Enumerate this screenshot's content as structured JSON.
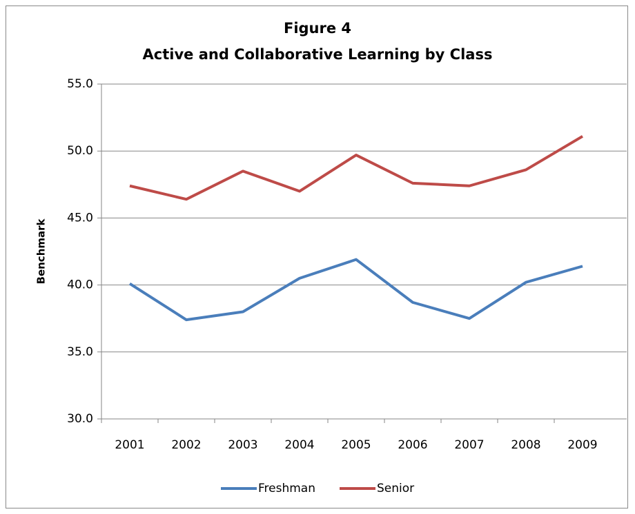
{
  "chart_data": {
    "type": "line",
    "title": "Figure 4",
    "subtitle": "Active and Collaborative Learning by Class",
    "y_label": "Benchmark",
    "categories": [
      "2001",
      "2002",
      "2003",
      "2004",
      "2005",
      "2006",
      "2007",
      "2008",
      "2009"
    ],
    "series": [
      {
        "name": "Freshman",
        "color": "#4a7ebb",
        "values": [
          40.1,
          37.4,
          38.0,
          40.5,
          41.9,
          38.7,
          37.5,
          40.2,
          41.4
        ]
      },
      {
        "name": "Senior",
        "color": "#be4b48",
        "values": [
          47.4,
          46.4,
          48.5,
          47.0,
          49.7,
          47.6,
          47.4,
          48.6,
          51.1
        ]
      }
    ],
    "ylim": [
      30,
      55
    ],
    "yticks": [
      {
        "value": 30,
        "label": "30.0"
      },
      {
        "value": 35,
        "label": "35.0"
      },
      {
        "value": 40,
        "label": "40.0"
      },
      {
        "value": 45,
        "label": "45.0"
      },
      {
        "value": 50,
        "label": "50.0"
      },
      {
        "value": 55,
        "label": "55.0"
      }
    ],
    "grid": true,
    "legend": "bottom"
  }
}
